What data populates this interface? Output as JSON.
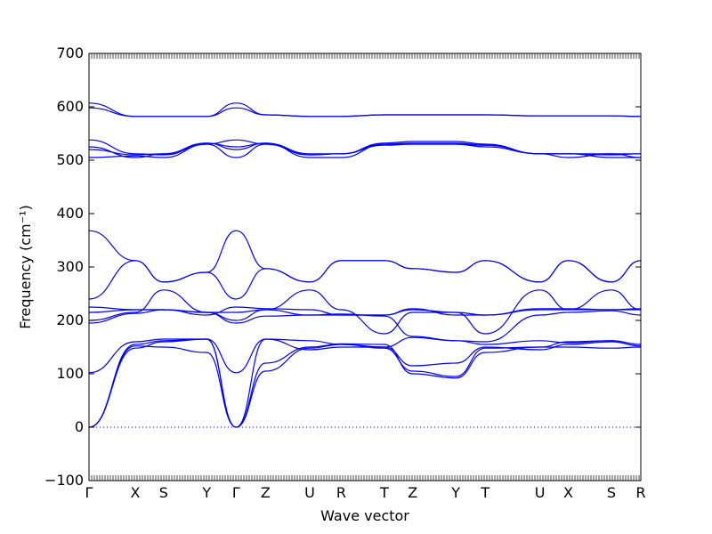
{
  "chart_data": {
    "type": "line",
    "title": "",
    "xlabel": "Wave vector",
    "ylabel": "Frequency (cm⁻¹)",
    "ylim": [
      -100,
      700
    ],
    "yticks": [
      -100,
      0,
      100,
      200,
      300,
      400,
      500,
      600,
      700
    ],
    "x_high_symmetry_points": [
      "Γ",
      "X",
      "S",
      "Y",
      "Γ",
      "Z",
      "U",
      "R",
      "T",
      "Z",
      "Y",
      "T",
      "U",
      "X",
      "S",
      "R"
    ],
    "x_point_positions": [
      0.0,
      0.5,
      1.0,
      1.5,
      2.0,
      2.5,
      3.0,
      3.5,
      4.0,
      4.5,
      5.0,
      5.5,
      6.0,
      6.5,
      7.0,
      7.5
    ],
    "x_display_positions": [
      0.0,
      0.88,
      1.42,
      2.24,
      2.8,
      3.36,
      4.2,
      4.8,
      5.62,
      6.16,
      6.98,
      7.54,
      8.58,
      9.12,
      9.94,
      10.5
    ],
    "xlim": [
      0.0,
      10.5
    ],
    "zero_line": 0,
    "series_color": "#0000ff",
    "zero_line_color": "#0000ff",
    "series": [
      {
        "x": [
          0,
          0.5,
          1.0,
          1.5,
          2.0,
          2.5,
          3.0,
          3.5,
          4.0,
          4.5,
          5.0,
          5.5,
          6.0,
          6.5,
          7.0,
          7.5
        ],
        "values": [
          0,
          148,
          160,
          165,
          0,
          165,
          145,
          150,
          150,
          115,
          120,
          150,
          145,
          155,
          160,
          152
        ]
      },
      {
        "x": [
          0,
          0.5,
          1.0,
          1.5,
          2.0,
          2.5,
          3.0,
          3.5,
          4.0,
          4.5,
          5.0,
          5.5,
          6.0,
          6.5,
          7.0,
          7.5
        ],
        "values": [
          0,
          152,
          150,
          140,
          0,
          105,
          148,
          155,
          148,
          105,
          95,
          148,
          150,
          150,
          148,
          150
        ]
      },
      {
        "x": [
          0,
          0.5,
          1.0,
          1.5,
          2.0,
          2.5,
          3.0,
          3.5,
          4.0,
          4.5,
          5.0,
          5.5,
          6.0,
          6.5,
          7.0,
          7.5
        ],
        "values": [
          0,
          155,
          162,
          165,
          0,
          120,
          150,
          156,
          155,
          100,
          92,
          140,
          150,
          160,
          162,
          155
        ]
      },
      {
        "x": [
          0,
          0.5,
          1.0,
          1.5,
          2.0,
          2.5,
          3.0,
          3.5,
          4.0,
          4.5,
          5.0,
          5.5,
          6.0,
          6.5,
          7.0,
          7.5
        ],
        "values": [
          102,
          160,
          165,
          165,
          102,
          165,
          162,
          155,
          150,
          168,
          162,
          155,
          162,
          158,
          162,
          155
        ]
      },
      {
        "x": [
          0,
          0.5,
          1.0,
          1.5,
          2.0,
          2.5,
          3.0,
          3.5,
          4.0,
          4.5,
          5.0,
          5.5,
          6.0,
          6.5,
          7.0,
          7.5
        ],
        "values": [
          195,
          213,
          220,
          215,
          195,
          208,
          210,
          212,
          208,
          170,
          162,
          160,
          210,
          215,
          218,
          210
        ]
      },
      {
        "x": [
          0,
          0.5,
          1.0,
          1.5,
          2.0,
          2.5,
          3.0,
          3.5,
          4.0,
          4.5,
          5.0,
          5.5,
          6.0,
          6.5,
          7.0,
          7.5
        ],
        "values": [
          200,
          215,
          257,
          215,
          200,
          220,
          257,
          220,
          175,
          215,
          215,
          175,
          257,
          220,
          257,
          220
        ]
      },
      {
        "x": [
          0,
          0.5,
          1.0,
          1.5,
          2.0,
          2.5,
          3.0,
          3.5,
          4.0,
          4.5,
          5.0,
          5.5,
          6.0,
          6.5,
          7.0,
          7.5
        ],
        "values": [
          215,
          220,
          220,
          215,
          215,
          220,
          210,
          210,
          210,
          220,
          215,
          210,
          220,
          220,
          220,
          220
        ]
      },
      {
        "x": [
          0,
          0.5,
          1.0,
          1.5,
          2.0,
          2.5,
          3.0,
          3.5,
          4.0,
          4.5,
          5.0,
          5.5,
          6.0,
          6.5,
          7.0,
          7.5
        ],
        "values": [
          225,
          220,
          220,
          210,
          225,
          222,
          220,
          210,
          210,
          222,
          210,
          210,
          222,
          222,
          220,
          222
        ]
      },
      {
        "x": [
          0,
          0.5,
          1.0,
          1.5,
          2.0,
          2.5,
          3.0,
          3.5,
          4.0,
          4.5,
          5.0,
          5.5,
          6.0,
          6.5,
          7.0,
          7.5
        ],
        "values": [
          240,
          312,
          272,
          290,
          240,
          297,
          272,
          312,
          312,
          297,
          290,
          312,
          272,
          312,
          272,
          312
        ]
      },
      {
        "x": [
          0,
          0.5,
          1.0,
          1.5,
          2.0,
          2.5,
          3.0,
          3.5,
          4.0,
          4.5,
          5.0,
          5.5,
          6.0,
          6.5,
          7.0,
          7.5
        ],
        "values": [
          368,
          312,
          272,
          290,
          368,
          297,
          272,
          312,
          312,
          297,
          290,
          312,
          272,
          312,
          272,
          312
        ]
      },
      {
        "x": [
          0,
          0.5,
          1.0,
          1.5,
          2.0,
          2.5,
          3.0,
          3.5,
          4.0,
          4.5,
          5.0,
          5.5,
          6.0,
          6.5,
          7.0,
          7.5
        ],
        "values": [
          505,
          508,
          505,
          530,
          505,
          530,
          510,
          512,
          528,
          530,
          530,
          525,
          512,
          512,
          505,
          505
        ]
      },
      {
        "x": [
          0,
          0.5,
          1.0,
          1.5,
          2.0,
          2.5,
          3.0,
          3.5,
          4.0,
          4.5,
          5.0,
          5.5,
          6.0,
          6.5,
          7.0,
          7.5
        ],
        "values": [
          520,
          510,
          512,
          532,
          520,
          532,
          512,
          512,
          530,
          532,
          532,
          528,
          512,
          512,
          512,
          512
        ]
      },
      {
        "x": [
          0,
          0.5,
          1.0,
          1.5,
          2.0,
          2.5,
          3.0,
          3.5,
          4.0,
          4.5,
          5.0,
          5.5,
          6.0,
          6.5,
          7.0,
          7.5
        ],
        "values": [
          525,
          505,
          512,
          532,
          525,
          532,
          505,
          505,
          530,
          530,
          530,
          528,
          512,
          505,
          512,
          505
        ]
      },
      {
        "x": [
          0,
          0.5,
          1.0,
          1.5,
          2.0,
          2.5,
          3.0,
          3.5,
          4.0,
          4.5,
          5.0,
          5.5,
          6.0,
          6.5,
          7.0,
          7.5
        ],
        "values": [
          538,
          512,
          510,
          530,
          538,
          530,
          510,
          512,
          532,
          535,
          535,
          530,
          512,
          512,
          510,
          512
        ]
      },
      {
        "x": [
          0,
          0.5,
          1.0,
          1.5,
          2.0,
          2.5,
          3.0,
          3.5,
          4.0,
          4.5,
          5.0,
          5.5,
          6.0,
          6.5,
          7.0,
          7.5
        ],
        "values": [
          598,
          582,
          582,
          582,
          598,
          585,
          582,
          582,
          585,
          585,
          585,
          585,
          583,
          583,
          583,
          582
        ]
      },
      {
        "x": [
          0,
          0.5,
          1.0,
          1.5,
          2.0,
          2.5,
          3.0,
          3.5,
          4.0,
          4.5,
          5.0,
          5.5,
          6.0,
          6.5,
          7.0,
          7.5
        ],
        "values": [
          607,
          582,
          582,
          582,
          607,
          585,
          582,
          582,
          585,
          585,
          585,
          585,
          583,
          583,
          583,
          582
        ]
      }
    ]
  }
}
